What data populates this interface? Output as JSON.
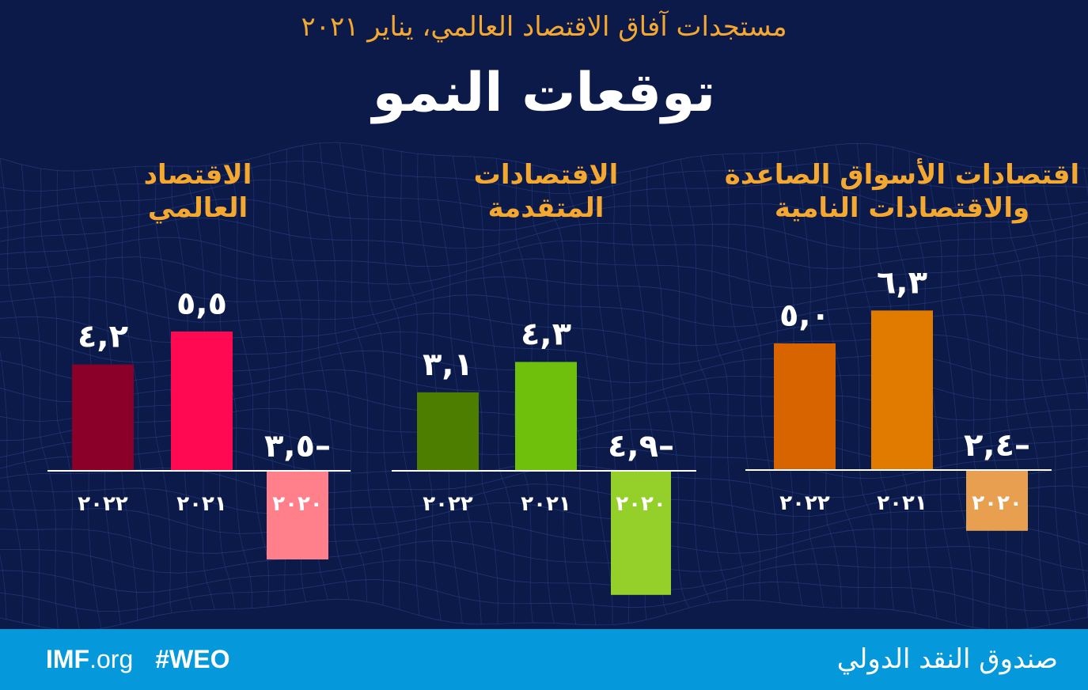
{
  "header": {
    "subtitle": "مستجدات آفاق الاقتصاد العالمي، يناير ٢٠٢١",
    "title": "توقعات النمو"
  },
  "footer": {
    "site_main": "IMF",
    "site_suffix": ".org",
    "hashtag": "#WEO",
    "org_name": "صندوق النقد الدولي"
  },
  "colors": {
    "background": "#0c1a4a",
    "footer": "#0599dc",
    "subtitle": "#f5a830",
    "group_title": "#f5a830"
  },
  "chart_data": [
    {
      "type": "bar",
      "title_lines": [
        "الاقتصاد",
        "العالمي"
      ],
      "categories": [
        "٢٠٢٢",
        "٢٠٢١",
        "٢٠٢٠"
      ],
      "values": [
        4.2,
        5.5,
        -3.5
      ],
      "value_labels": [
        "٤,٢",
        "٥,٥",
        "٣,٥–"
      ],
      "bar_colors": [
        "#8b0028",
        "#ff0a52",
        "#ff7f8a"
      ]
    },
    {
      "type": "bar",
      "title_lines": [
        "الاقتصادات",
        "المتقدمة"
      ],
      "categories": [
        "٢٠٢٢",
        "٢٠٢١",
        "٢٠٢٠"
      ],
      "values": [
        3.1,
        4.3,
        -4.9
      ],
      "value_labels": [
        "٣,١",
        "٤,٣",
        "٤,٩–"
      ],
      "bar_colors": [
        "#4e7e00",
        "#6ec00c",
        "#94cf2a"
      ]
    },
    {
      "type": "bar",
      "title_lines": [
        "اقتصادات الأسواق الصاعدة",
        "والاقتصادات النامية"
      ],
      "categories": [
        "٢٠٢٢",
        "٢٠٢١",
        "٢٠٢٠"
      ],
      "values": [
        5.0,
        6.3,
        -2.4
      ],
      "value_labels": [
        "٥,٠",
        "٦,٣",
        "٢,٤–"
      ],
      "bar_colors": [
        "#d86400",
        "#e07b00",
        "#e8a050"
      ]
    }
  ]
}
